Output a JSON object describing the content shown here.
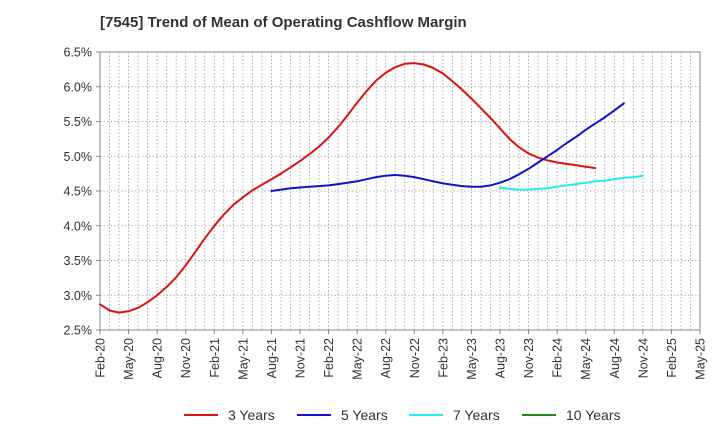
{
  "chart_data": {
    "type": "line",
    "title": "[7545]  Trend of Mean of Operating Cashflow Margin",
    "xlabel": "",
    "ylabel": "",
    "ylim": [
      2.5,
      6.5
    ],
    "y_ticks": [
      "2.5%",
      "3.0%",
      "3.5%",
      "4.0%",
      "4.5%",
      "5.0%",
      "5.5%",
      "6.0%",
      "6.5%"
    ],
    "x_ticks": [
      "Feb-20",
      "May-20",
      "Aug-20",
      "Nov-20",
      "Feb-21",
      "May-21",
      "Aug-21",
      "Nov-21",
      "Feb-22",
      "May-22",
      "Aug-22",
      "Nov-22",
      "Feb-23",
      "May-23",
      "Aug-23",
      "Nov-23",
      "Feb-24",
      "May-24",
      "Aug-24",
      "Nov-24",
      "Feb-25",
      "May-25"
    ],
    "grid": true,
    "legend_position": "bottom",
    "series": [
      {
        "name": "3 Years",
        "color": "#dd1111",
        "start_tick": 0,
        "values": [
          2.87,
          2.78,
          2.75,
          2.77,
          2.82,
          2.9,
          3.0,
          3.12,
          3.26,
          3.43,
          3.62,
          3.82,
          4.0,
          4.16,
          4.3,
          4.41,
          4.51,
          4.59,
          4.67,
          4.75,
          4.84,
          4.93,
          5.03,
          5.14,
          5.27,
          5.42,
          5.59,
          5.77,
          5.94,
          6.09,
          6.2,
          6.28,
          6.33,
          6.34,
          6.32,
          6.27,
          6.19,
          6.08,
          5.96,
          5.83,
          5.69,
          5.55,
          5.4,
          5.25,
          5.13,
          5.04,
          4.98,
          4.94,
          4.91,
          4.89,
          4.87,
          4.85,
          4.83
        ]
      },
      {
        "name": "5 Years",
        "color": "#1111cc",
        "start_tick": 18,
        "values": [
          4.5,
          4.52,
          4.54,
          4.55,
          4.56,
          4.57,
          4.58,
          4.6,
          4.62,
          4.64,
          4.67,
          4.7,
          4.72,
          4.73,
          4.72,
          4.7,
          4.67,
          4.64,
          4.61,
          4.59,
          4.57,
          4.56,
          4.56,
          4.58,
          4.62,
          4.67,
          4.74,
          4.82,
          4.91,
          5.0,
          5.09,
          5.19,
          5.28,
          5.38,
          5.47,
          5.56,
          5.66,
          5.76
        ]
      },
      {
        "name": "7 Years",
        "color": "#22eeee",
        "start_tick": 42,
        "values": [
          4.55,
          4.53,
          4.52,
          4.52,
          4.53,
          4.54,
          4.56,
          4.58,
          4.6,
          4.62,
          4.64,
          4.65,
          4.67,
          4.69,
          4.7,
          4.72
        ]
      },
      {
        "name": "10 Years",
        "color": "#228822",
        "start_tick": 0,
        "values": []
      }
    ]
  }
}
